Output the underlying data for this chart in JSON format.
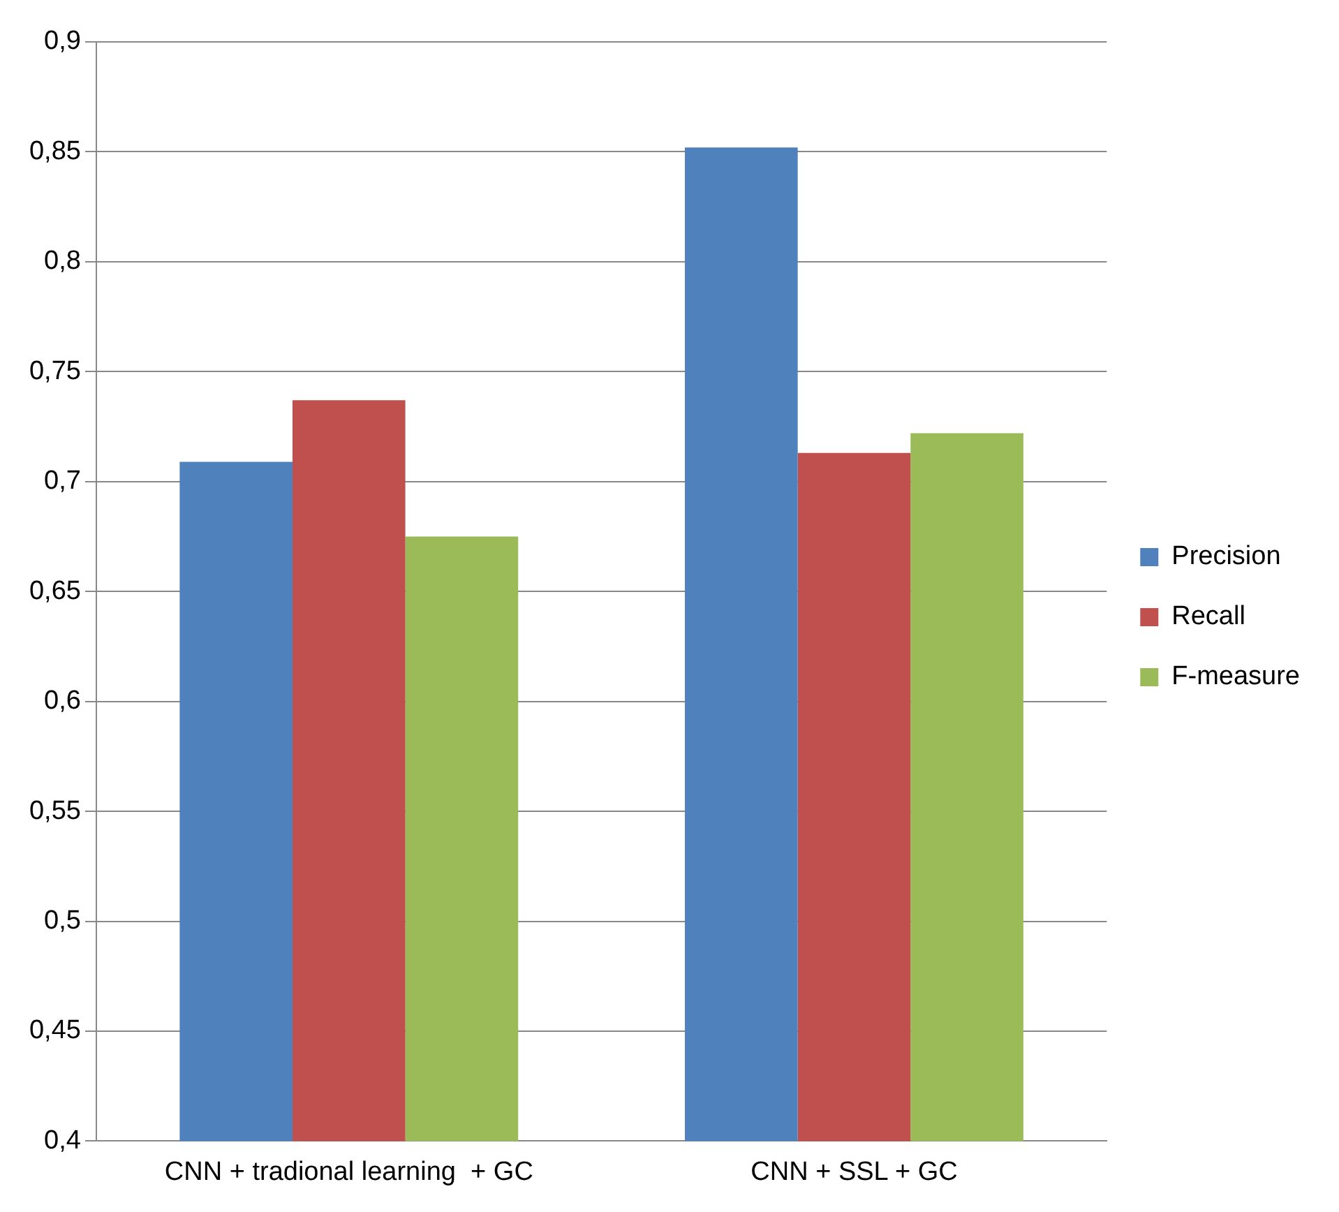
{
  "chart_data": {
    "type": "bar",
    "categories": [
      "CNN + tradional learning  + GC",
      "CNN + SSL + GC"
    ],
    "series": [
      {
        "name": "Precision",
        "color": "#4f81bd",
        "values": [
          0.709,
          0.852
        ]
      },
      {
        "name": "Recall",
        "color": "#c0504d",
        "values": [
          0.737,
          0.713
        ]
      },
      {
        "name": "F-measure",
        "color": "#9bbb59",
        "values": [
          0.675,
          0.722
        ]
      }
    ],
    "ylim": [
      0.4,
      0.9
    ],
    "yticks": [
      {
        "value": 0.4,
        "label": "0,4"
      },
      {
        "value": 0.45,
        "label": "0,45"
      },
      {
        "value": 0.5,
        "label": "0,5"
      },
      {
        "value": 0.55,
        "label": "0,55"
      },
      {
        "value": 0.6,
        "label": "0,6"
      },
      {
        "value": 0.65,
        "label": "0,65"
      },
      {
        "value": 0.7,
        "label": "0,7"
      },
      {
        "value": 0.75,
        "label": "0,75"
      },
      {
        "value": 0.8,
        "label": "0,8"
      },
      {
        "value": 0.85,
        "label": "0,85"
      },
      {
        "value": 0.9,
        "label": "0,9"
      }
    ],
    "grid": "y",
    "legend": "right"
  }
}
